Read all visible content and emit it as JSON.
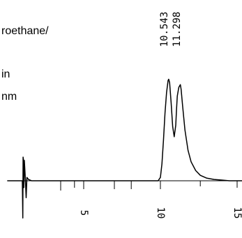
{
  "chart_data": {
    "type": "line",
    "header_lines": [
      "roethane/",
      "in",
      "nm"
    ],
    "x_tick_labels": [
      "5",
      "10",
      "15"
    ],
    "peak_labels": [
      "10.543",
      "11.298"
    ],
    "xlim": [
      0,
      16
    ],
    "ylim": [
      -0.6,
      1.6
    ],
    "trace": {
      "x": [
        0.05,
        0.7,
        1.0,
        1.03,
        1.05,
        1.08,
        1.1,
        1.13,
        1.2,
        1.25,
        1.3,
        1.4,
        1.6,
        2.0,
        3.0,
        4.0,
        5.0,
        6.0,
        7.0,
        8.0,
        9.0,
        9.5,
        9.85,
        10.0,
        10.1,
        10.2,
        10.3,
        10.4,
        10.5,
        10.543,
        10.6,
        10.7,
        10.8,
        10.9,
        11.0,
        11.05,
        11.1,
        11.2,
        11.298,
        11.35,
        11.45,
        11.6,
        11.8,
        12.0,
        12.3,
        12.6,
        13.0,
        13.5,
        14.0,
        14.5,
        15.0,
        15.5,
        16.0
      ],
      "y": [
        0.0,
        0.0,
        0.0,
        -0.55,
        0.35,
        0.3,
        -0.1,
        0.3,
        0.02,
        -0.25,
        0.05,
        0.02,
        0.0,
        0.0,
        0.0,
        0.0,
        0.0,
        0.0,
        0.0,
        0.0,
        0.0,
        0.0,
        0.0,
        0.05,
        0.25,
        0.6,
        1.0,
        1.3,
        1.48,
        1.5,
        1.45,
        1.15,
        0.8,
        0.65,
        0.82,
        1.05,
        1.25,
        1.38,
        1.42,
        1.35,
        1.1,
        0.75,
        0.45,
        0.28,
        0.15,
        0.08,
        0.04,
        0.02,
        0.01,
        0.0,
        0.0,
        0.0,
        0.0
      ]
    },
    "colors": {
      "line": "#000000",
      "background": "#ffffff"
    }
  }
}
